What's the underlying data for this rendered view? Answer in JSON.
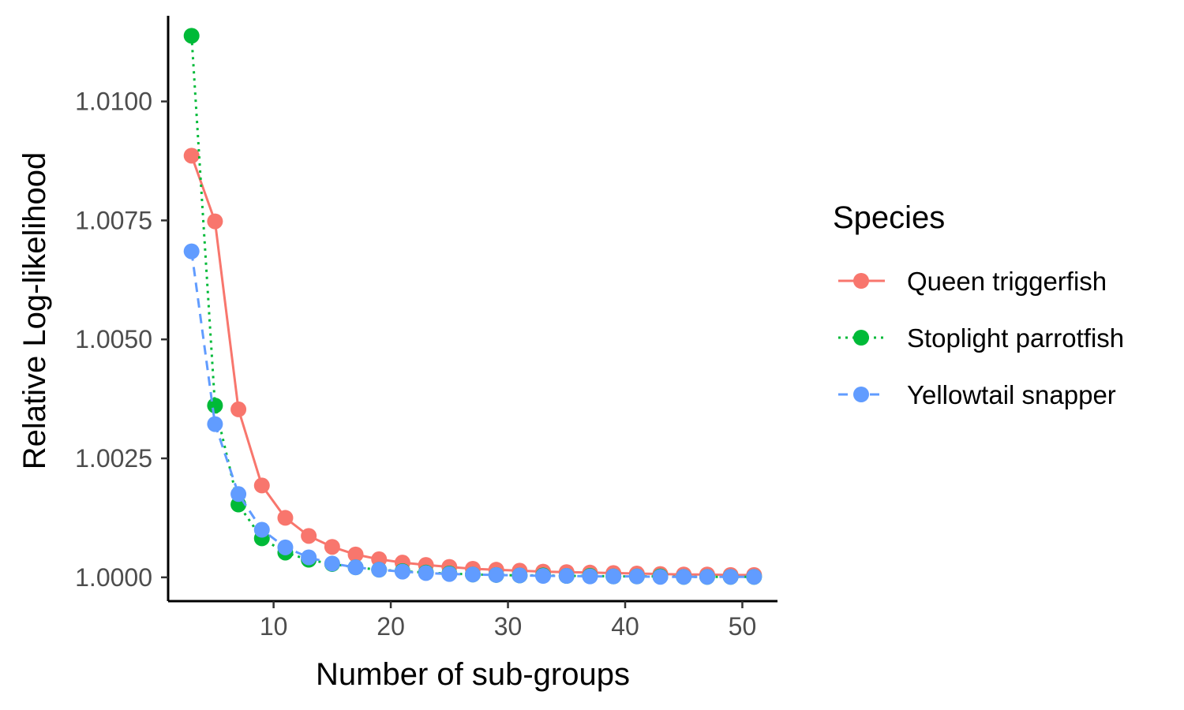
{
  "chart_data": {
    "type": "line",
    "title": "",
    "xlabel": "Number of sub-groups",
    "ylabel": "Relative Log-likelihood",
    "xlim": [
      1,
      53
    ],
    "ylim": [
      0.9995,
      1.0118
    ],
    "x_ticks": [
      10,
      20,
      30,
      40,
      50
    ],
    "y_ticks": [
      1.0,
      1.0025,
      1.005,
      1.0075,
      1.01
    ],
    "x_tick_labels": [
      "10",
      "20",
      "30",
      "40",
      "50"
    ],
    "y_tick_labels": [
      "1.0000",
      "1.0025",
      "1.0050",
      "1.0075",
      "1.0100"
    ],
    "grid": false,
    "legend": {
      "title": "Species",
      "position": "right"
    },
    "x": [
      3,
      5,
      7,
      9,
      11,
      13,
      15,
      17,
      19,
      21,
      23,
      25,
      27,
      29,
      31,
      33,
      35,
      37,
      39,
      41,
      43,
      45,
      47,
      49,
      51
    ],
    "series": [
      {
        "name": "Queen triggerfish",
        "color": "#F8766D",
        "linestyle": "solid",
        "values": [
          1.00886,
          1.00748,
          1.00353,
          1.00193,
          1.00125,
          1.00087,
          1.00064,
          1.00048,
          1.00038,
          1.00031,
          1.00026,
          1.00022,
          1.00018,
          1.00016,
          1.00014,
          1.00012,
          1.00011,
          1.0001,
          1.00009,
          1.00008,
          1.00007,
          1.00006,
          1.00006,
          1.00005,
          1.00005
        ]
      },
      {
        "name": "Stoplight parrotfish",
        "color": "#00BA38",
        "linestyle": "dotted",
        "values": [
          1.01138,
          1.00361,
          1.00153,
          1.00082,
          1.00052,
          1.00037,
          1.00028,
          1.00021,
          1.00016,
          1.00013,
          1.0001,
          1.00008,
          1.00006,
          1.00005,
          1.00004,
          1.00004,
          1.00003,
          1.00003,
          1.00002,
          1.00002,
          1.00002,
          1.00001,
          1.00001,
          1.00001,
          1.00001
        ]
      },
      {
        "name": "Yellowtail snapper",
        "color": "#619CFF",
        "linestyle": "dashed",
        "values": [
          1.00685,
          1.00322,
          1.00175,
          1.001,
          1.00063,
          1.00042,
          1.00029,
          1.00021,
          1.00016,
          1.00012,
          1.00009,
          1.00007,
          1.00006,
          1.00005,
          1.00004,
          1.00003,
          1.00003,
          1.00002,
          1.00002,
          1.00002,
          1.00001,
          1.00001,
          1.00001,
          1.00001,
          1.00001
        ]
      }
    ]
  }
}
